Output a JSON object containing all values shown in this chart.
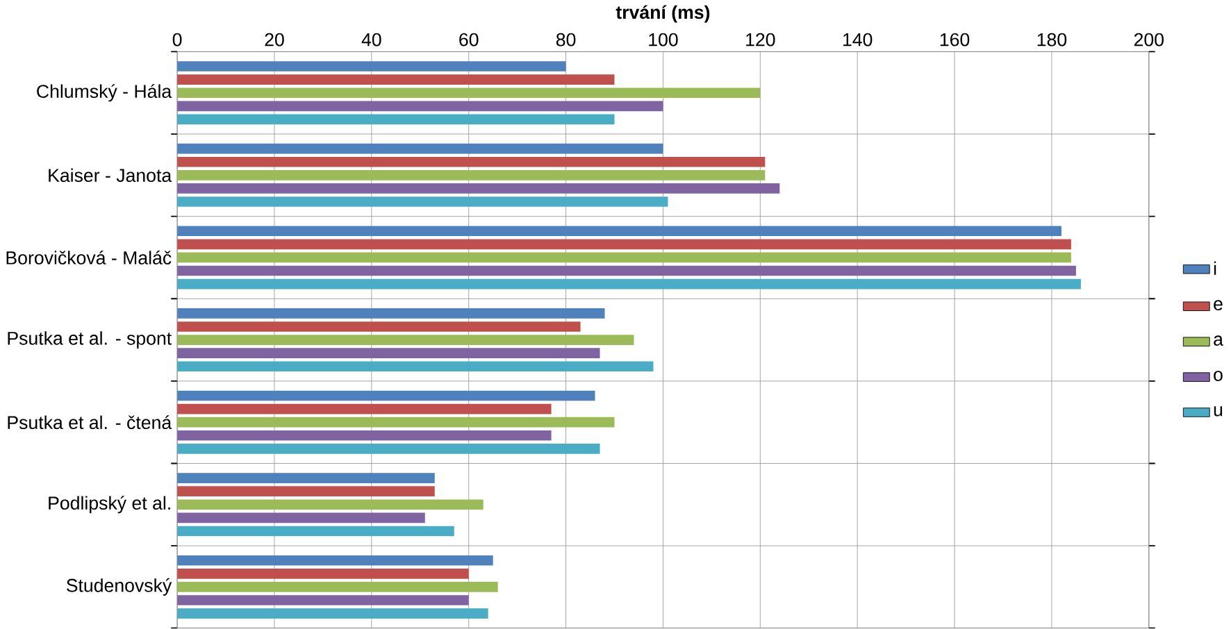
{
  "chart_data": {
    "type": "bar",
    "orientation": "horizontal",
    "xlabel": "trvání (ms)",
    "categories": [
      "Chlumský - Hála",
      "Kaiser - Janota",
      "Borovičková - Maláč",
      "Psutka et al. - spont",
      "Psutka et al. - čtená",
      "Podlipský et al.",
      "Studenovský"
    ],
    "series": [
      {
        "name": "i",
        "color": "#4f81bd",
        "values": [
          80,
          100,
          182,
          88,
          86,
          53,
          65
        ]
      },
      {
        "name": "e",
        "color": "#c0504d",
        "values": [
          90,
          121,
          184,
          83,
          77,
          53,
          60
        ]
      },
      {
        "name": "a",
        "color": "#9bbb59",
        "values": [
          120,
          121,
          184,
          94,
          90,
          63,
          66
        ]
      },
      {
        "name": "o",
        "color": "#8064a2",
        "values": [
          100,
          124,
          185,
          87,
          77,
          51,
          60
        ]
      },
      {
        "name": "u",
        "color": "#4bacc6",
        "values": [
          90,
          101,
          186,
          98,
          87,
          57,
          64
        ]
      }
    ],
    "xlim": [
      0,
      200
    ],
    "xticks": [
      0,
      20,
      40,
      60,
      80,
      100,
      120,
      140,
      160,
      180,
      200
    ],
    "grid": true,
    "legend": "right"
  }
}
